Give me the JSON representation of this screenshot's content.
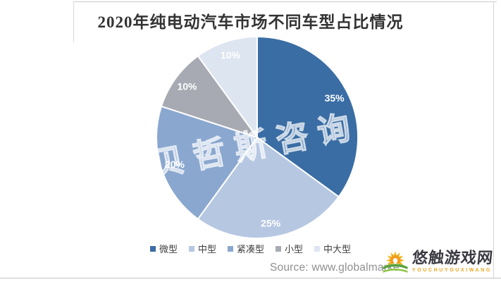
{
  "page": {
    "title": "2020年纯电动汽车市场不同车型占比情况",
    "source_text": "Source: www.globalmarke",
    "watermark": "贝哲斯咨询"
  },
  "branding": {
    "site_name": "悠触游戏网",
    "site_name_latin": "YOUCHUYOUXIWANG",
    "accent_color": "#f2a51c",
    "name_color": "#3a3a42",
    "sun_colors": [
      "#f7c61b",
      "#ef9214"
    ],
    "field_colors": [
      "#57a33c",
      "#8cc63f"
    ]
  },
  "chart_data": {
    "type": "pie",
    "title": "2020年纯电动汽车市场不同车型占比情况",
    "categories": [
      "微型",
      "中型",
      "紧凑型",
      "小型",
      "中大型"
    ],
    "values": [
      35,
      25,
      20,
      10,
      10
    ],
    "unit": "%",
    "colors": [
      "#3a6da4",
      "#b6c7e2",
      "#8aa7cf",
      "#a7aab2",
      "#dde5f1"
    ],
    "slice_labels": [
      "35%",
      "25%",
      "20%",
      "10%",
      "10%"
    ],
    "start_angle_deg": 0,
    "direction": "clockwise",
    "slice_border_color": "#ffffff",
    "label_color": "#ffffff",
    "legend_position": "bottom",
    "legend_text_color": "#404040"
  }
}
